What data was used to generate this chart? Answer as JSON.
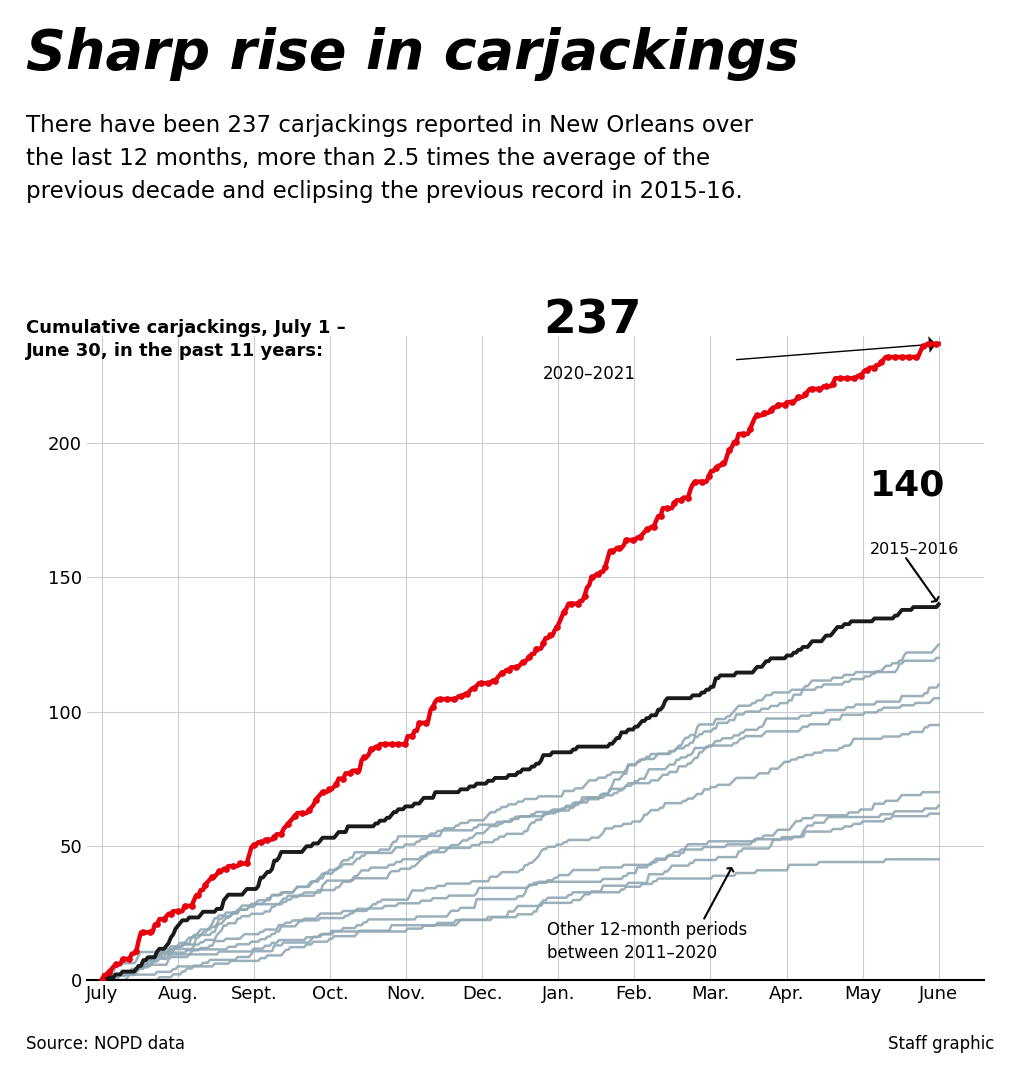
{
  "title": "Sharp rise in carjackings",
  "subtitle": "There have been 237 carjackings reported in New Orleans over\nthe last 12 months, more than 2.5 times the average of the\nprevious decade and eclipsing the previous record in 2015-16.",
  "chart_label": "Cumulative carjackings, July 1 –\nJune 30, in the past 11 years:",
  "source": "Source: NOPD data",
  "staff": "Staff graphic",
  "months": [
    "July",
    "Aug.",
    "Sept.",
    "Oct.",
    "Nov.",
    "Dec.",
    "Jan.",
    "Feb.",
    "Mar.",
    "Apr.",
    "May",
    "June"
  ],
  "ylim": [
    0,
    240
  ],
  "yticks": [
    0,
    50,
    100,
    150,
    200
  ],
  "red_final": 237,
  "black_final": 140,
  "red_color": "#e8000d",
  "black_color": "#1a1a1a",
  "gray_color": "#90a8b4",
  "background": "#ffffff",
  "grid_color": "#cccccc",
  "gray_finals": [
    45,
    62,
    65,
    70,
    95,
    105,
    110,
    120,
    125
  ]
}
